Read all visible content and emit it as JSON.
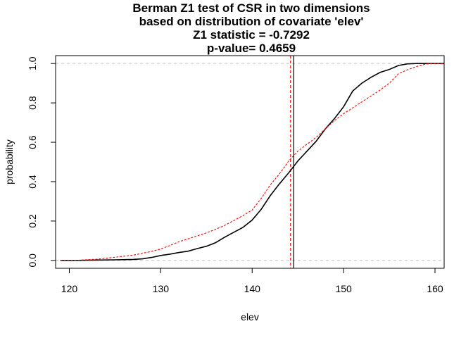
{
  "chart_data": {
    "type": "line",
    "title_lines": [
      "Berman Z1 test of CSR in two dimensions",
      "based on distribution of covariate 'elev'",
      "Z1 statistic = -0.7292",
      "p-value= 0.4659"
    ],
    "xlabel": "elev",
    "ylabel": "probability",
    "xlim": [
      118.5,
      161
    ],
    "ylim": [
      -0.04,
      1.04
    ],
    "x_ticks": [
      120,
      130,
      140,
      150,
      160
    ],
    "x_tick_labels": [
      "120",
      "130",
      "140",
      "150",
      "160"
    ],
    "y_ticks": [
      0.0,
      0.2,
      0.4,
      0.6,
      0.8,
      1.0
    ],
    "y_tick_labels": [
      "0.0",
      "0.2",
      "0.4",
      "0.6",
      "0.8",
      "1.0"
    ],
    "reference_hlines": [
      0,
      1
    ],
    "series": [
      {
        "color": "#000000",
        "dash": false,
        "x": [
          119,
          121,
          123,
          125,
          127,
          128,
          129,
          130,
          131,
          132,
          133,
          134,
          135,
          136,
          137,
          138,
          139,
          140,
          141,
          142,
          143,
          144,
          145,
          146,
          147,
          148,
          149,
          150,
          151,
          152,
          153,
          154,
          155,
          156,
          157,
          158,
          159,
          160,
          161
        ],
        "y": [
          0.0,
          0.0,
          0.002,
          0.003,
          0.005,
          0.008,
          0.015,
          0.025,
          0.032,
          0.04,
          0.047,
          0.06,
          0.072,
          0.09,
          0.118,
          0.143,
          0.168,
          0.205,
          0.26,
          0.33,
          0.39,
          0.445,
          0.505,
          0.555,
          0.605,
          0.668,
          0.72,
          0.78,
          0.86,
          0.9,
          0.93,
          0.955,
          0.97,
          0.99,
          0.998,
          1.0,
          1.0,
          1.0,
          1.0
        ]
      },
      {
        "color": "#ff0000",
        "dash": true,
        "x": [
          119,
          121,
          123,
          125,
          127,
          128,
          129,
          130,
          131,
          132,
          133,
          134,
          135,
          136,
          137,
          138,
          139,
          140,
          141,
          142,
          143,
          144,
          145,
          146,
          147,
          148,
          149,
          150,
          151,
          152,
          153,
          154,
          155,
          156,
          157,
          158,
          159,
          160,
          161
        ],
        "y": [
          0.0,
          0.001,
          0.006,
          0.016,
          0.027,
          0.036,
          0.046,
          0.058,
          0.076,
          0.095,
          0.11,
          0.125,
          0.14,
          0.158,
          0.178,
          0.203,
          0.228,
          0.256,
          0.315,
          0.385,
          0.44,
          0.505,
          0.555,
          0.59,
          0.625,
          0.668,
          0.71,
          0.745,
          0.775,
          0.805,
          0.835,
          0.865,
          0.9,
          0.948,
          0.968,
          0.985,
          0.997,
          1.0,
          1.0
        ]
      }
    ],
    "vlines": [
      {
        "x": 144.55,
        "color": "#000000",
        "dash": false
      },
      {
        "x": 144.2,
        "color": "#ff0000",
        "dash": true
      }
    ],
    "grid": false,
    "legend": "none"
  }
}
